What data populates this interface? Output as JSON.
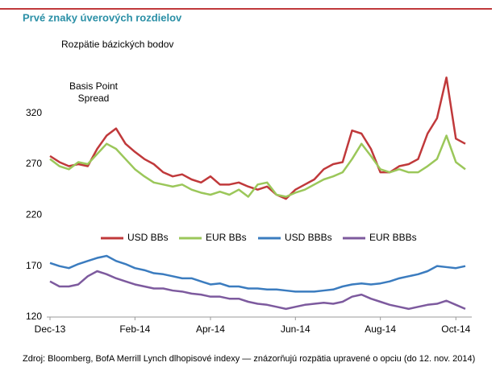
{
  "chart_data": {
    "type": "line",
    "title": "Prvé znaky úverových rozdielov",
    "subtitle": "Rozpätie bázických bodov",
    "y_axis_label": "Basis Point Spread",
    "source": "Zdroj: Bloomberg, BofA Merrill Lynch dlhopisové indexy — znázorňujú rozpätia upravené o opciu (do 12. nov. 2014)",
    "categories": [
      "Dec-13",
      null,
      null,
      null,
      null,
      null,
      null,
      null,
      null,
      "Feb-14",
      null,
      null,
      null,
      null,
      null,
      null,
      null,
      "Apr-14",
      null,
      null,
      null,
      null,
      null,
      null,
      null,
      null,
      "Jun-14",
      null,
      null,
      null,
      null,
      null,
      null,
      null,
      null,
      "Aug-14",
      null,
      null,
      null,
      null,
      null,
      null,
      null,
      "Oct-14",
      null
    ],
    "series": [
      {
        "name": "USD BBs",
        "color": "#c0393b",
        "values": [
          278,
          272,
          268,
          270,
          268,
          285,
          298,
          305,
          290,
          282,
          275,
          270,
          262,
          258,
          260,
          255,
          252,
          258,
          250,
          250,
          252,
          248,
          245,
          248,
          240,
          236,
          245,
          250,
          255,
          265,
          270,
          272,
          303,
          300,
          285,
          262,
          262,
          268,
          270,
          275,
          300,
          315,
          355,
          295,
          290
        ]
      },
      {
        "name": "EUR BBs",
        "color": "#9bc75a",
        "values": [
          275,
          268,
          265,
          272,
          270,
          280,
          290,
          285,
          275,
          265,
          258,
          252,
          250,
          248,
          250,
          245,
          242,
          240,
          243,
          240,
          245,
          238,
          250,
          252,
          240,
          238,
          242,
          245,
          250,
          255,
          258,
          262,
          275,
          290,
          278,
          265,
          262,
          265,
          262,
          262,
          268,
          275,
          298,
          272,
          265
        ]
      },
      {
        "name": "USD BBBs",
        "color": "#3b7cbf",
        "values": [
          173,
          170,
          168,
          172,
          175,
          178,
          180,
          175,
          172,
          168,
          166,
          163,
          162,
          160,
          158,
          158,
          155,
          152,
          153,
          150,
          150,
          148,
          148,
          147,
          147,
          146,
          145,
          145,
          145,
          146,
          147,
          150,
          152,
          153,
          152,
          153,
          155,
          158,
          160,
          162,
          165,
          170,
          169,
          168,
          170
        ]
      },
      {
        "name": "EUR BBBs",
        "color": "#7d5a9e",
        "values": [
          155,
          150,
          150,
          152,
          160,
          165,
          162,
          158,
          155,
          152,
          150,
          148,
          148,
          146,
          145,
          143,
          142,
          140,
          140,
          138,
          138,
          135,
          133,
          132,
          130,
          128,
          130,
          132,
          133,
          134,
          133,
          135,
          140,
          142,
          138,
          135,
          132,
          130,
          128,
          130,
          132,
          133,
          136,
          132,
          128
        ]
      }
    ],
    "ylim": [
      120,
      360
    ],
    "yticks": [
      120,
      170,
      220,
      270,
      320
    ],
    "grid": false
  }
}
